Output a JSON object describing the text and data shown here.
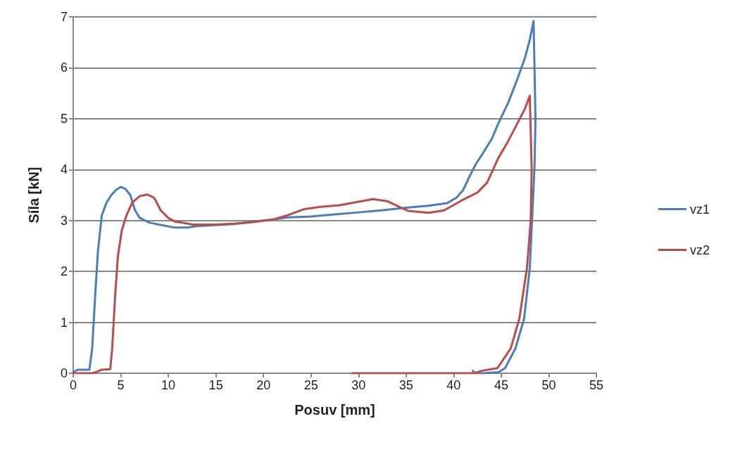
{
  "chart_data": {
    "type": "line",
    "xlabel": "Posuv [mm]",
    "ylabel": "Síla [kN]",
    "xlim": [
      0,
      55
    ],
    "xticks": [
      0,
      5,
      10,
      15,
      20,
      25,
      30,
      35,
      40,
      45,
      50,
      55
    ],
    "ylim": [
      0,
      7
    ],
    "yticks": [
      0,
      1,
      2,
      3,
      4,
      5,
      6,
      7
    ],
    "grid": "y",
    "legend": "right",
    "marker": "none",
    "line_style": "solid",
    "series": [
      {
        "name": "vz1",
        "color": "#4a7ebb",
        "x": [
          0,
          0.5,
          1.7,
          2,
          2.3,
          2.6,
          3,
          3.5,
          4,
          4.5,
          5,
          5.5,
          6,
          6.5,
          7,
          8,
          9,
          10.7,
          12,
          13,
          15,
          17,
          19,
          21,
          22.6,
          25,
          27.5,
          30,
          32.4,
          35,
          37.3,
          39.3,
          40.3,
          41,
          41.5,
          42.3,
          43,
          44,
          44.7,
          45.7,
          46.7,
          47.5,
          48,
          48.4,
          48.6,
          48.5,
          48,
          47.4,
          46.5,
          45.4,
          44.7,
          43,
          42.2,
          42
        ],
        "values": [
          0.02,
          0.07,
          0.07,
          0.5,
          1.5,
          2.4,
          3.1,
          3.35,
          3.5,
          3.6,
          3.66,
          3.62,
          3.5,
          3.2,
          3.05,
          2.96,
          2.92,
          2.86,
          2.86,
          2.89,
          2.91,
          2.93,
          2.98,
          3.02,
          3.06,
          3.08,
          3.12,
          3.16,
          3.2,
          3.25,
          3.29,
          3.34,
          3.45,
          3.6,
          3.8,
          4.1,
          4.3,
          4.6,
          4.91,
          5.3,
          5.78,
          6.2,
          6.55,
          6.92,
          5,
          4.06,
          2.06,
          1.07,
          0.49,
          0.1,
          0.02,
          0,
          0,
          0.05
        ]
      },
      {
        "name": "vz2",
        "color": "#be4b48",
        "x": [
          0,
          2,
          2.5,
          3,
          3.9,
          4.1,
          4.4,
          4.7,
          5.1,
          5.6,
          6.2,
          7,
          7.8,
          8.5,
          9.2,
          10,
          10.7,
          12.6,
          15,
          17,
          19,
          21,
          22.5,
          24.2,
          26,
          28,
          30,
          31.5,
          33,
          34.5,
          35.2,
          37.4,
          39,
          41.1,
          42.5,
          43.5,
          44.7,
          45.7,
          46.7,
          47.5,
          48,
          48.2,
          48.1,
          47.7,
          46.9,
          46,
          44.6,
          43,
          42.5,
          42,
          29.3
        ],
        "values": [
          0,
          0,
          0.03,
          0.07,
          0.08,
          0.5,
          1.5,
          2.3,
          2.8,
          3.1,
          3.35,
          3.48,
          3.51,
          3.45,
          3.2,
          3.05,
          2.98,
          2.92,
          2.92,
          2.94,
          2.97,
          3.02,
          3.1,
          3.22,
          3.27,
          3.3,
          3.37,
          3.42,
          3.38,
          3.25,
          3.19,
          3.15,
          3.2,
          3.42,
          3.55,
          3.74,
          4.23,
          4.55,
          4.91,
          5.2,
          5.45,
          4,
          3,
          2.06,
          1.07,
          0.49,
          0.1,
          0.05,
          0.02,
          0,
          0
        ]
      }
    ]
  }
}
